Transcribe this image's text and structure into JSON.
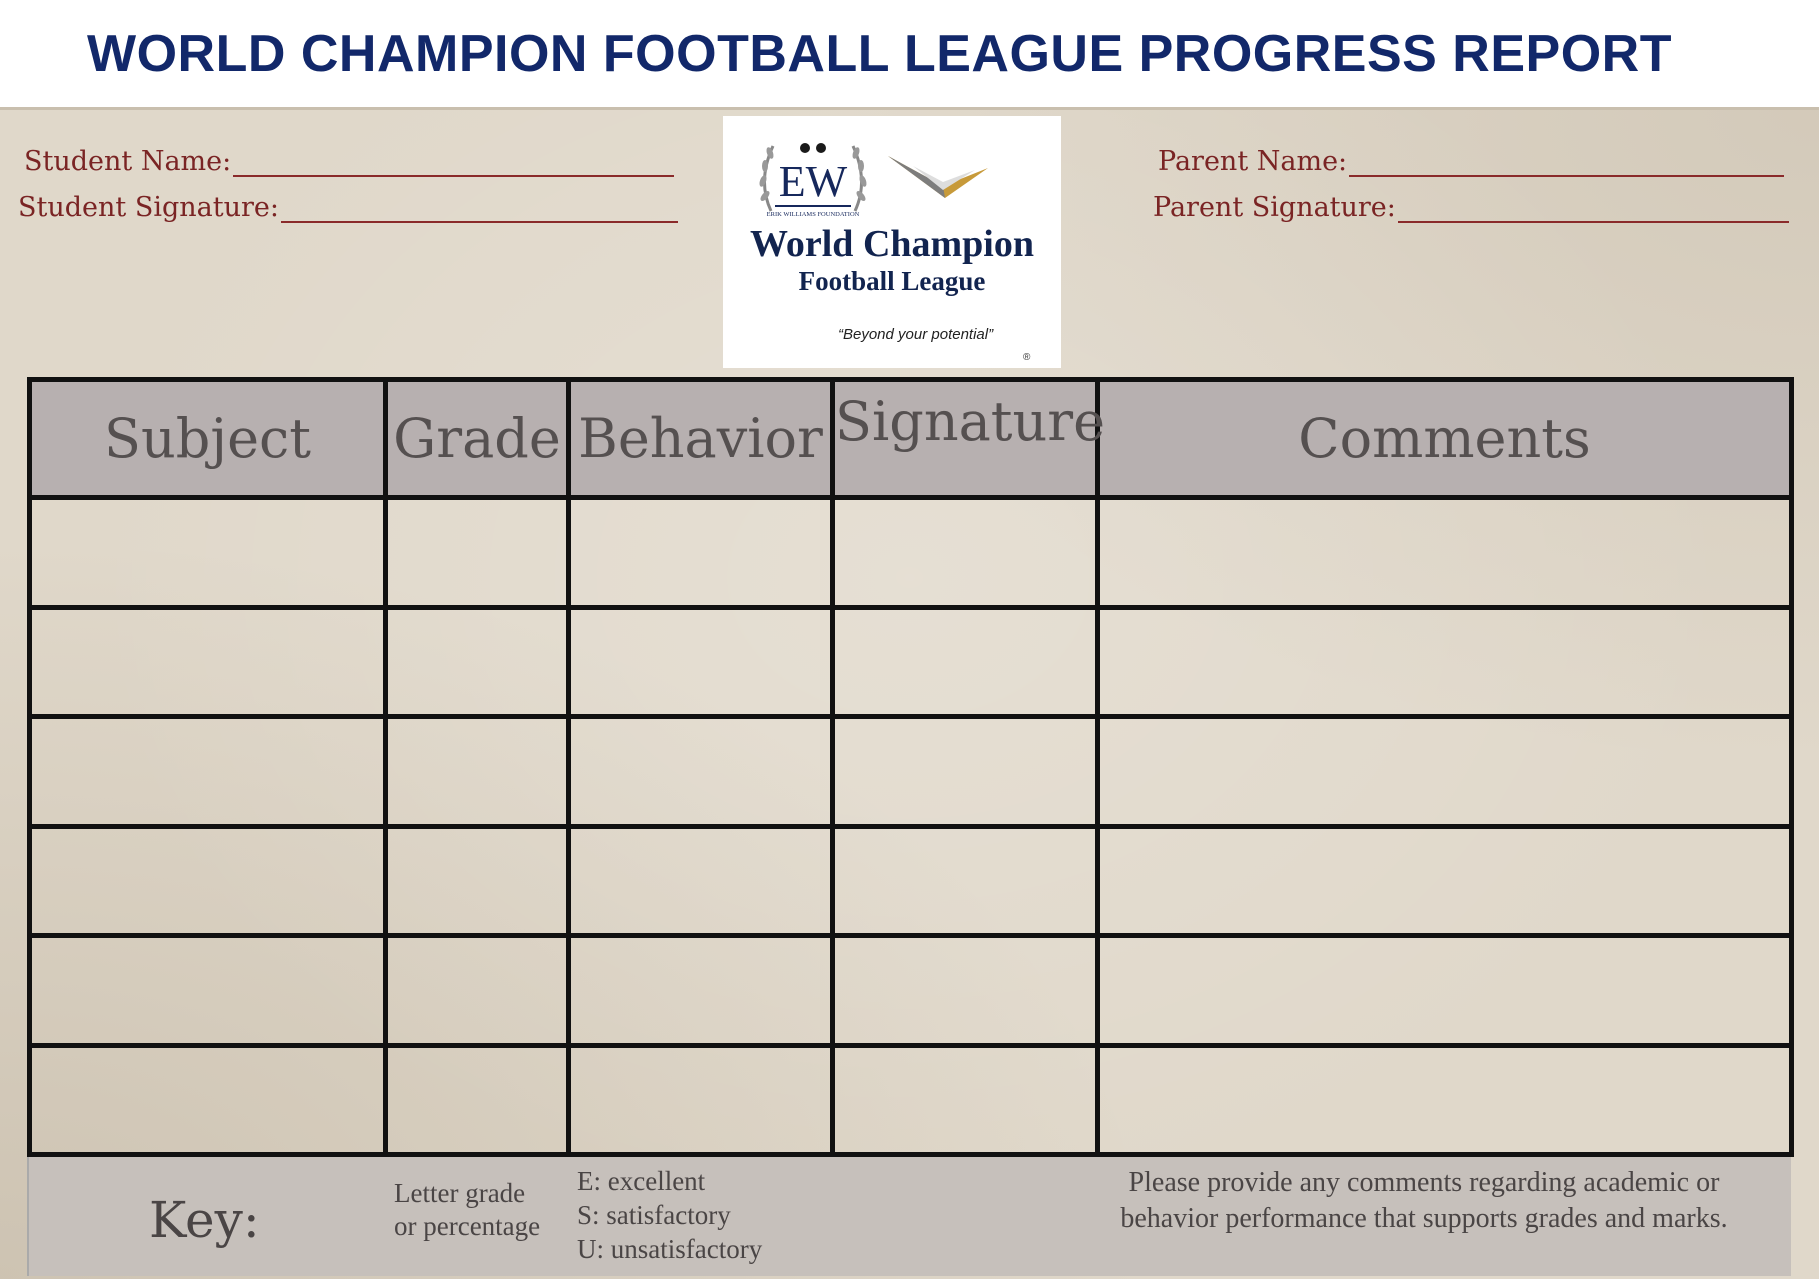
{
  "header": {
    "title": "WORLD CHAMPION FOOTBALL LEAGUE PROGRESS REPORT"
  },
  "fields": {
    "student_name": "Student Name:",
    "student_signature": "Student Signature:",
    "parent_name": "Parent Name:",
    "parent_signature": "Parent Signature:"
  },
  "logo": {
    "monogram": "EW",
    "foundation": "ERIK WILLIAMS FOUNDATION",
    "name_line1": "World Champion",
    "name_line2": "Football League",
    "tagline": "“Beyond your potential”",
    "registered": "®"
  },
  "table": {
    "columns": [
      "Subject",
      "Grade",
      "Behavior",
      "Signature",
      "Comments"
    ],
    "row_count": 6
  },
  "key": {
    "label": "Key:",
    "grade": [
      "Letter grade",
      "or percentage"
    ],
    "behavior": [
      "E: excellent",
      "S: satisfactory",
      "U: unsatisfactory"
    ],
    "comments": "Please provide any comments regarding academic or behavior performance that supports grades and marks."
  },
  "colors": {
    "title": "#12286a",
    "field_text": "#7a2424",
    "paper": "#e0d8ca",
    "header_cell": "#b7b0b0"
  }
}
